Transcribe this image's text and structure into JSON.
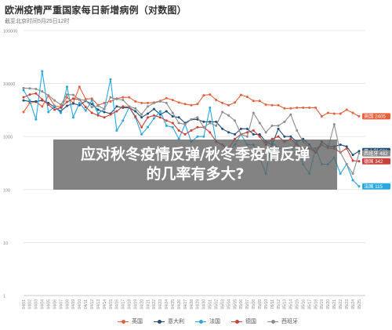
{
  "header": {
    "title": "欧洲疫情严重国家每日新增病例（对数图）",
    "subtitle": "截至北京时间5月25日12时"
  },
  "overlay": {
    "line1": "应对秋冬疫情反弹/秋冬季疫情反弹",
    "line2": "的几率有多大?"
  },
  "chart_data": {
    "type": "line",
    "title": "欧洲疫情严重国家每日新增病例（对数图）",
    "subtitle": "截至北京时间5月25日12时",
    "y_scale": "log",
    "ylim": [
      1,
      100000
    ],
    "y_ticks": [
      "100000",
      "10000",
      "1000",
      "100",
      "10",
      "1"
    ],
    "grid": true,
    "legend_position": "bottom",
    "categories": [
      "04/01",
      "04/02",
      "04/03",
      "04/04",
      "04/05",
      "04/06",
      "04/07",
      "04/08",
      "04/09",
      "04/10",
      "04/11",
      "04/12",
      "04/13",
      "04/14",
      "04/15",
      "04/16",
      "04/17",
      "04/18",
      "04/19",
      "04/20",
      "04/21",
      "04/22",
      "04/23",
      "04/24",
      "04/25",
      "04/26",
      "04/27",
      "04/28",
      "04/29",
      "04/30",
      "05/01",
      "05/02",
      "05/03",
      "05/04",
      "05/05",
      "05/06",
      "05/07",
      "05/08",
      "05/09",
      "05/10",
      "05/11",
      "05/12",
      "05/13",
      "05/14",
      "05/15",
      "05/16",
      "05/17",
      "05/18",
      "05/19",
      "05/20",
      "05/21",
      "05/22",
      "05/23",
      "05/24",
      "05/25"
    ],
    "series": [
      {
        "name": "英国",
        "color": "#e8603c",
        "end_label": "英国 2405",
        "values": [
          2900,
          4300,
          4500,
          3700,
          5900,
          3800,
          3600,
          5500,
          4300,
          8700,
          5100,
          5200,
          3900,
          4300,
          4600,
          5200,
          5500,
          5500,
          4600,
          4300,
          4300,
          4400,
          4700,
          5300,
          4900,
          4400,
          4100,
          3900,
          4100,
          6000,
          6200,
          4900,
          4300,
          3900,
          4400,
          6100,
          5600,
          4700,
          4700,
          4000,
          3900,
          3900,
          3400,
          3400,
          3500,
          3500,
          3500,
          3500,
          2400,
          2800,
          2700,
          2700,
          3200,
          2800,
          2405
        ]
      },
      {
        "name": "意大利",
        "color": "#1f4e79",
        "end_label": "意大利 531",
        "values": [
          4800,
          4600,
          4600,
          4800,
          4300,
          3600,
          3000,
          3800,
          4200,
          3900,
          4700,
          4100,
          3200,
          2900,
          2700,
          3700,
          3500,
          3500,
          3000,
          2300,
          2700,
          3300,
          2600,
          3000,
          2400,
          2300,
          1800,
          2100,
          2100,
          1900,
          1900,
          1900,
          1400,
          1200,
          1100,
          1400,
          1400,
          1100,
          1100,
          800,
          700,
          1400,
          1000,
          1000,
          800,
          900,
          700,
          500,
          800,
          650,
          650,
          700,
          650,
          450,
          531
        ]
      },
      {
        "name": "法国",
        "color": "#29a8e0",
        "end_label": "法国 115",
        "values": [
          7500,
          4800,
          2100,
          17000,
          2900,
          3700,
          2800,
          8700,
          2300,
          4300,
          3100,
          4800,
          2700,
          3300,
          12000,
          1300,
          2000,
          3600,
          2300,
          1100,
          1500,
          2200,
          3000,
          1600,
          1500,
          900,
          1700,
          800,
          1000,
          1000,
          3500,
          800,
          700,
          500,
          700,
          1100,
          700,
          700,
          400,
          200,
          800,
          600,
          600,
          500,
          800,
          300,
          200,
          600,
          300,
          300,
          400,
          200,
          300,
          150,
          115
        ]
      },
      {
        "name": "德国",
        "color": "#c9423a",
        "end_label": "德国 342",
        "values": [
          5500,
          6200,
          6500,
          5000,
          4000,
          3200,
          3500,
          4500,
          5200,
          5000,
          3600,
          2800,
          2500,
          2300,
          2600,
          3000,
          3700,
          3600,
          2400,
          1500,
          2300,
          2500,
          2300,
          2000,
          1800,
          1300,
          1100,
          1300,
          1500,
          1500,
          1200,
          800,
          700,
          600,
          900,
          1100,
          1200,
          1300,
          1000,
          700,
          900,
          1000,
          800,
          900,
          700,
          600,
          600,
          500,
          700,
          600,
          600,
          500,
          600,
          350,
          342
        ]
      },
      {
        "name": "西班牙",
        "color": "#8c8c8c",
        "end_label": "西班牙 482",
        "values": [
          8200,
          8100,
          7900,
          7100,
          6000,
          4800,
          4000,
          6200,
          6100,
          5000,
          4800,
          3600,
          3800,
          3300,
          5500,
          5100,
          4900,
          3700,
          3400,
          2600,
          3700,
          4300,
          4600,
          4300,
          2800,
          1800,
          1700,
          2100,
          2300,
          1500,
          1800,
          1600,
          2900,
          2500,
          2000,
          1100,
          1000,
          2800,
          1800,
          1200,
          1600,
          1600,
          1900,
          2600,
          1300,
          800,
          600,
          600,
          700,
          600,
          1700,
          500,
          300,
          200,
          482
        ]
      }
    ]
  }
}
